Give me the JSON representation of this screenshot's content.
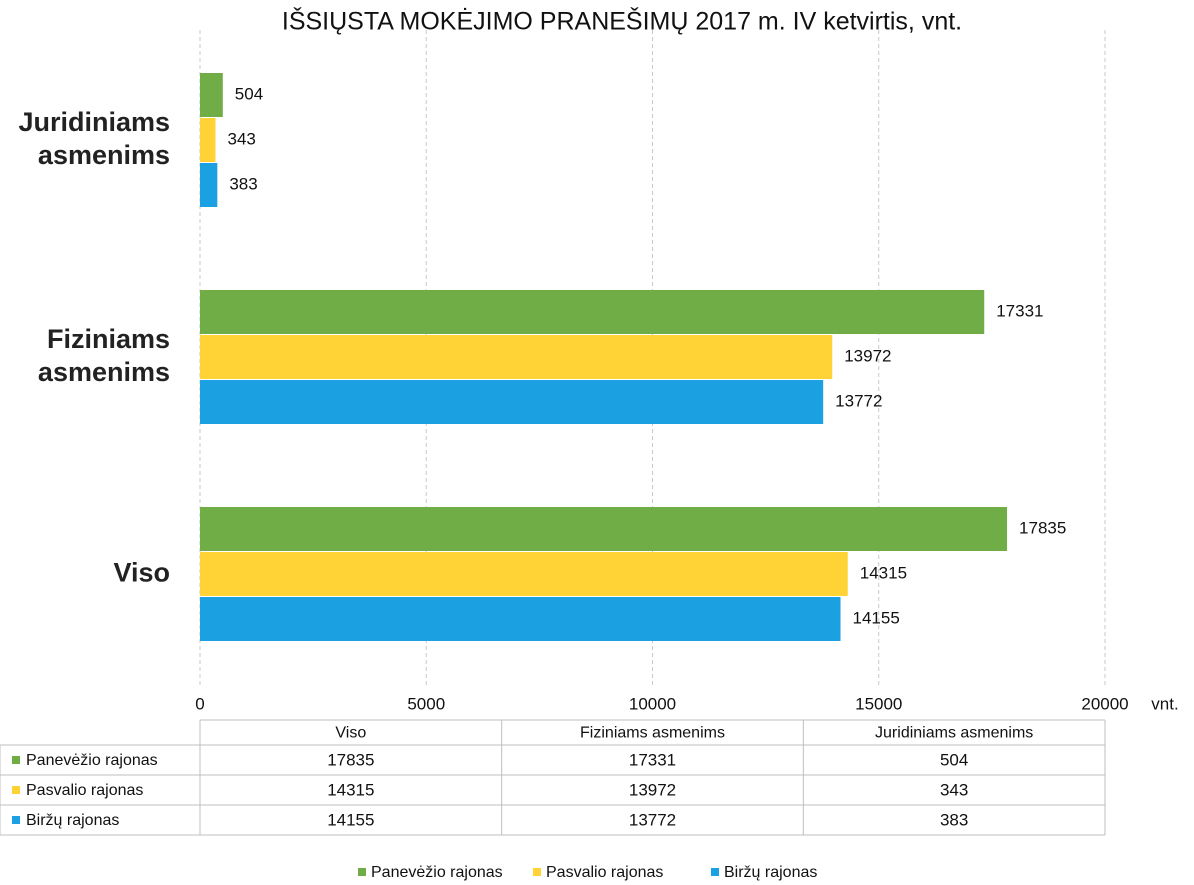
{
  "chart_data": {
    "type": "bar",
    "orientation": "horizontal",
    "title": "IŠSIŲSTA MOKĖJIMO PRANEŠIMŲ 2017 m. IV ketvirtis, vnt.",
    "x_label": "vnt.",
    "categories": [
      "Viso",
      "Fiziniams asmenims",
      "Juridiniams asmenims"
    ],
    "series": [
      {
        "name": "Panevėžio rajonas",
        "color": "#70ad47",
        "values": [
          17835,
          17331,
          504
        ]
      },
      {
        "name": "Pasvalio rajonas",
        "color": "#ffd335",
        "values": [
          14315,
          13972,
          343
        ]
      },
      {
        "name": "Biržų rajonas",
        "color": "#1ba1e2",
        "values": [
          14155,
          13772,
          383
        ]
      }
    ],
    "xlim": [
      0,
      20000
    ],
    "xticks": [
      0,
      5000,
      10000,
      15000,
      20000
    ],
    "grid": true,
    "legend": "bottom",
    "data_table": true
  }
}
